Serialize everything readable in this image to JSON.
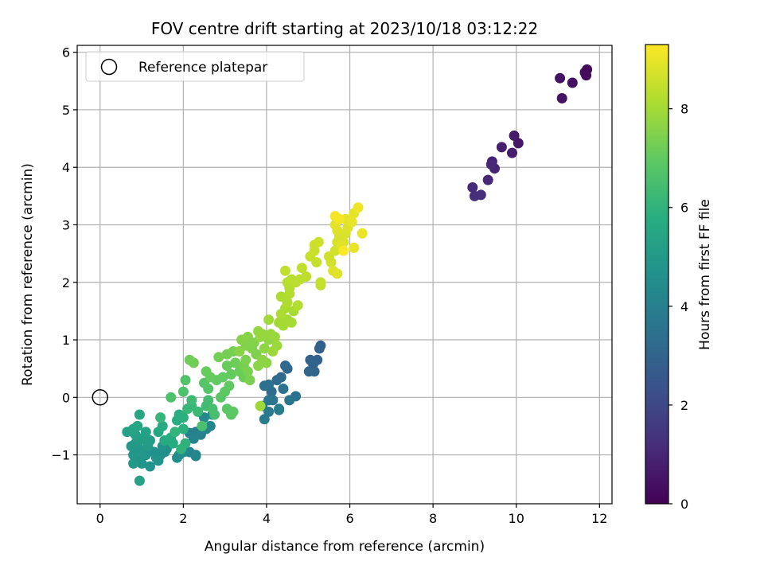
{
  "chart_data": {
    "type": "scatter",
    "title": "FOV centre drift starting at 2023/10/18 03:12:22",
    "xlabel": "Angular distance from reference (arcmin)",
    "ylabel": "Rotation from reference (arcmin)",
    "xlim": [
      -0.55,
      12.3
    ],
    "ylim": [
      -1.85,
      6.12
    ],
    "xticks": [
      "0",
      "2",
      "4",
      "6",
      "8",
      "10",
      "12"
    ],
    "yticks": [
      "−1",
      "0",
      "1",
      "2",
      "3",
      "4",
      "5",
      "6"
    ],
    "grid": true,
    "legend": {
      "placement": "top-left",
      "entries": [
        "Reference platepar"
      ]
    },
    "reference_point": {
      "x": 0,
      "y": 0,
      "marker": "open-circle"
    },
    "colorbar": {
      "label": "Hours from first FF file",
      "colormap": "viridis",
      "range": [
        0,
        9.3
      ],
      "ticks": [
        "0",
        "2",
        "4",
        "6",
        "8"
      ]
    },
    "points": [
      [
        11.7,
        5.7,
        0.2
      ],
      [
        11.65,
        5.65,
        0.25
      ],
      [
        11.68,
        5.6,
        0.3
      ],
      [
        11.35,
        5.47,
        0.4
      ],
      [
        11.05,
        5.55,
        0.45
      ],
      [
        11.1,
        5.2,
        0.5
      ],
      [
        10.05,
        4.42,
        0.6
      ],
      [
        9.95,
        4.55,
        0.7
      ],
      [
        9.9,
        4.25,
        0.75
      ],
      [
        9.65,
        4.35,
        0.8
      ],
      [
        9.42,
        4.1,
        0.9
      ],
      [
        9.48,
        3.98,
        0.95
      ],
      [
        9.32,
        3.78,
        1.0
      ],
      [
        9.4,
        4.05,
        1.05
      ],
      [
        8.95,
        3.65,
        1.1
      ],
      [
        9.0,
        3.5,
        1.2
      ],
      [
        9.15,
        3.52,
        1.25
      ],
      [
        5.3,
        0.9,
        2.8
      ],
      [
        5.27,
        0.85,
        2.85
      ],
      [
        5.22,
        0.65,
        2.9
      ],
      [
        5.05,
        0.65,
        2.95
      ],
      [
        5.12,
        0.58,
        3.0
      ],
      [
        5.15,
        0.45,
        3.0
      ],
      [
        5.02,
        0.45,
        3.05
      ],
      [
        4.5,
        0.5,
        3.1
      ],
      [
        4.45,
        0.55,
        3.15
      ],
      [
        4.35,
        0.35,
        3.2
      ],
      [
        4.25,
        0.3,
        3.25
      ],
      [
        4.12,
        0.1,
        3.3
      ],
      [
        4.05,
        0.22,
        3.35
      ],
      [
        3.95,
        0.2,
        3.4
      ],
      [
        4.4,
        0.15,
        3.45
      ],
      [
        4.7,
        0.02,
        3.5
      ],
      [
        4.55,
        -0.05,
        3.55
      ],
      [
        4.15,
        -0.05,
        3.6
      ],
      [
        4.05,
        -0.05,
        3.65
      ],
      [
        3.9,
        -0.15,
        3.7
      ],
      [
        4.3,
        -0.2,
        3.75
      ],
      [
        4.05,
        -0.25,
        3.8
      ],
      [
        3.95,
        -0.38,
        3.85
      ],
      [
        4.3,
        -0.22,
        3.9
      ],
      [
        2.45,
        -0.55,
        3.9
      ],
      [
        2.3,
        -0.6,
        3.95
      ],
      [
        2.42,
        -0.65,
        4.0
      ],
      [
        2.15,
        -0.62,
        4.05
      ],
      [
        2.25,
        -0.72,
        4.1
      ],
      [
        2.3,
        -1.0,
        4.15
      ],
      [
        2.15,
        -0.95,
        4.2
      ],
      [
        2.3,
        -1.02,
        4.2
      ],
      [
        2.55,
        -0.55,
        4.2
      ],
      [
        2.65,
        -0.5,
        4.25
      ],
      [
        2.5,
        -0.35,
        4.3
      ],
      [
        2.7,
        -0.3,
        4.35
      ],
      [
        2.0,
        -0.95,
        4.4
      ],
      [
        1.9,
        -1.0,
        4.45
      ],
      [
        1.85,
        -1.05,
        4.5
      ],
      [
        1.6,
        -0.9,
        4.55
      ],
      [
        1.45,
        -1.0,
        4.6
      ],
      [
        1.55,
        -0.95,
        4.62
      ],
      [
        1.3,
        -0.95,
        4.65
      ],
      [
        1.5,
        -0.85,
        4.68
      ],
      [
        1.35,
        -1.05,
        4.7
      ],
      [
        1.4,
        -1.1,
        4.72
      ],
      [
        1.1,
        -1.0,
        4.75
      ],
      [
        1.2,
        -1.2,
        4.78
      ],
      [
        1.0,
        -1.15,
        4.8
      ],
      [
        0.9,
        -1.1,
        4.82
      ],
      [
        1.05,
        -1.0,
        4.85
      ],
      [
        0.95,
        -0.9,
        4.88
      ],
      [
        0.8,
        -1.0,
        4.9
      ],
      [
        0.75,
        -0.85,
        4.95
      ],
      [
        0.85,
        -0.8,
        5.0
      ],
      [
        1.15,
        -0.85,
        5.05
      ],
      [
        1.2,
        -0.75,
        5.1
      ],
      [
        0.95,
        -0.75,
        5.15
      ],
      [
        1.05,
        -0.7,
        5.2
      ],
      [
        0.85,
        -0.65,
        5.25
      ],
      [
        1.1,
        -0.6,
        5.3
      ],
      [
        0.65,
        -0.6,
        5.35
      ],
      [
        0.8,
        -0.55,
        5.4
      ],
      [
        0.9,
        -0.5,
        5.45
      ],
      [
        0.95,
        -0.3,
        5.5
      ],
      [
        1.4,
        -0.6,
        5.55
      ],
      [
        1.5,
        -0.5,
        5.6
      ],
      [
        1.55,
        -0.75,
        5.65
      ],
      [
        1.7,
        -0.7,
        5.7
      ],
      [
        1.75,
        -0.8,
        5.72
      ],
      [
        0.95,
        -1.45,
        5.3
      ],
      [
        0.8,
        -1.15,
        5.0
      ],
      [
        1.85,
        -0.4,
        5.75
      ],
      [
        1.9,
        -0.3,
        5.8
      ],
      [
        2.0,
        -0.35,
        5.85
      ],
      [
        2.0,
        -0.55,
        5.9
      ],
      [
        2.05,
        -0.8,
        5.95
      ],
      [
        1.95,
        -0.9,
        6.0
      ],
      [
        1.8,
        -0.6,
        6.05
      ],
      [
        1.45,
        -0.35,
        6.1
      ],
      [
        2.1,
        -0.2,
        6.15
      ],
      [
        2.2,
        -0.15,
        6.2
      ],
      [
        2.35,
        -0.25,
        6.25
      ],
      [
        2.2,
        -0.05,
        6.3
      ],
      [
        2.55,
        -0.15,
        6.35
      ],
      [
        2.6,
        -0.05,
        6.4
      ],
      [
        2.7,
        -0.2,
        6.45
      ],
      [
        2.75,
        -0.3,
        6.5
      ],
      [
        2.45,
        -0.5,
        6.55
      ],
      [
        1.7,
        0.0,
        6.6
      ],
      [
        2.0,
        0.1,
        6.65
      ],
      [
        2.05,
        0.3,
        6.7
      ],
      [
        2.6,
        0.15,
        6.75
      ],
      [
        2.5,
        0.25,
        6.8
      ],
      [
        2.9,
        0.0,
        6.85
      ],
      [
        3.05,
        -0.2,
        6.9
      ],
      [
        3.15,
        -0.3,
        6.9
      ],
      [
        3.2,
        -0.25,
        6.92
      ],
      [
        3.0,
        0.1,
        6.95
      ],
      [
        3.1,
        0.2,
        6.97
      ],
      [
        2.8,
        0.3,
        7.0
      ],
      [
        2.95,
        0.35,
        7.02
      ],
      [
        3.15,
        0.4,
        7.05
      ],
      [
        2.65,
        0.35,
        7.08
      ],
      [
        2.55,
        0.45,
        7.1
      ],
      [
        3.05,
        0.55,
        7.12
      ],
      [
        3.35,
        0.45,
        7.15
      ],
      [
        3.45,
        0.35,
        7.18
      ],
      [
        3.25,
        0.6,
        7.2
      ],
      [
        2.15,
        0.65,
        7.22
      ],
      [
        2.25,
        0.6,
        7.25
      ],
      [
        2.85,
        0.7,
        7.28
      ],
      [
        3.05,
        0.75,
        7.3
      ],
      [
        3.2,
        0.8,
        7.33
      ],
      [
        3.45,
        0.55,
        7.35
      ],
      [
        3.55,
        0.45,
        7.38
      ],
      [
        3.6,
        0.3,
        7.4
      ],
      [
        3.5,
        0.65,
        7.42
      ],
      [
        3.75,
        0.75,
        7.45
      ],
      [
        3.65,
        0.85,
        7.48
      ],
      [
        3.5,
        0.9,
        7.5
      ],
      [
        3.7,
        0.95,
        7.52
      ],
      [
        3.4,
        1.0,
        7.55
      ],
      [
        3.55,
        1.05,
        7.57
      ],
      [
        3.35,
        0.8,
        7.6
      ],
      [
        3.8,
        0.55,
        7.62
      ],
      [
        3.9,
        0.65,
        7.65
      ],
      [
        4.0,
        0.6,
        7.67
      ],
      [
        3.95,
        0.85,
        7.7
      ],
      [
        4.05,
        1.0,
        7.72
      ],
      [
        3.85,
        1.05,
        7.75
      ],
      [
        3.8,
        1.15,
        7.77
      ],
      [
        3.9,
        1.1,
        7.8
      ],
      [
        4.1,
        1.1,
        7.82
      ],
      [
        4.2,
        1.05,
        7.85
      ],
      [
        4.25,
        0.9,
        7.87
      ],
      [
        4.15,
        0.8,
        7.9
      ],
      [
        3.85,
        -0.15,
        7.92
      ],
      [
        4.05,
        1.35,
        7.95
      ],
      [
        4.3,
        1.3,
        7.97
      ],
      [
        4.4,
        1.25,
        8.0
      ],
      [
        4.5,
        1.35,
        8.02
      ],
      [
        4.6,
        1.3,
        8.05
      ],
      [
        4.65,
        1.5,
        8.07
      ],
      [
        4.45,
        1.55,
        8.1
      ],
      [
        4.35,
        1.45,
        8.12
      ],
      [
        4.5,
        1.65,
        8.15
      ],
      [
        4.35,
        1.75,
        8.17
      ],
      [
        4.55,
        1.8,
        8.2
      ],
      [
        4.75,
        1.6,
        8.22
      ],
      [
        4.55,
        1.9,
        8.25
      ],
      [
        4.5,
        2.0,
        8.27
      ],
      [
        4.6,
        2.05,
        8.3
      ],
      [
        4.7,
        2.0,
        8.32
      ],
      [
        4.8,
        2.05,
        8.35
      ],
      [
        4.95,
        2.1,
        8.37
      ],
      [
        4.45,
        2.2,
        8.4
      ],
      [
        4.85,
        2.25,
        8.42
      ],
      [
        5.3,
        2.0,
        8.45
      ],
      [
        5.3,
        1.95,
        8.47
      ],
      [
        5.2,
        2.35,
        8.5
      ],
      [
        5.05,
        2.45,
        8.52
      ],
      [
        5.15,
        2.55,
        8.55
      ],
      [
        5.15,
        2.65,
        8.57
      ],
      [
        5.25,
        2.7,
        8.6
      ],
      [
        5.5,
        2.45,
        8.62
      ],
      [
        5.55,
        2.35,
        8.65
      ],
      [
        5.65,
        2.55,
        8.67
      ],
      [
        5.7,
        2.7,
        8.7
      ],
      [
        5.75,
        2.8,
        8.72
      ],
      [
        5.85,
        2.7,
        8.75
      ],
      [
        5.9,
        2.85,
        8.77
      ],
      [
        5.95,
        2.95,
        8.8
      ],
      [
        5.7,
        2.9,
        8.82
      ],
      [
        5.6,
        2.2,
        8.85
      ],
      [
        5.7,
        2.15,
        8.87
      ],
      [
        5.8,
        2.65,
        8.9
      ],
      [
        5.65,
        3.0,
        8.92
      ],
      [
        5.9,
        3.1,
        8.95
      ],
      [
        6.1,
        3.2,
        8.97
      ],
      [
        6.05,
        3.05,
        9.0
      ],
      [
        6.1,
        2.6,
        9.02
      ],
      [
        6.3,
        2.85,
        9.05
      ],
      [
        6.2,
        3.3,
        9.1
      ],
      [
        5.75,
        3.1,
        9.15
      ],
      [
        5.65,
        3.15,
        9.2
      ],
      [
        5.85,
        2.55,
        9.25
      ]
    ]
  }
}
